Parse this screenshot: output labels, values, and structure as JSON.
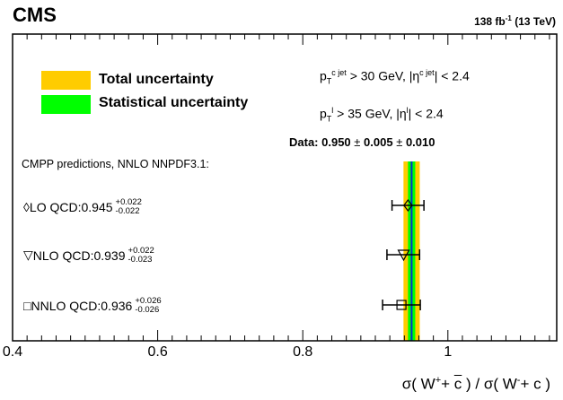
{
  "header": {
    "experiment": "CMS",
    "lumi_main": "138 fb",
    "lumi_exp": "-1",
    "lumi_energy": " (13 TeV)"
  },
  "legend": {
    "total": {
      "label": "Total uncertainty",
      "color": "#ffcc00"
    },
    "stat": {
      "label": "Statistical uncertainty",
      "color": "#00ff00"
    }
  },
  "cuts": {
    "jet": {
      "p": "p",
      "p_sub": "T",
      "p_sup": "c jet",
      "text": " > 30 GeV, |η",
      "eta_sup": "c jet",
      "end": "| < 2.4"
    },
    "lepton": {
      "p": "p",
      "p_sub": "T",
      "p_sup": "l",
      "text": " > 35 GeV, |η",
      "eta_sup": "l",
      "end": "| < 2.4"
    }
  },
  "measurement": {
    "prefix": "Data: ",
    "value_text": "0.950",
    "pm": " ± ",
    "stat_text": "0.005",
    "syst_text": "0.010"
  },
  "predictions_header": "CMPP predictions, NNLO NNPDF3.1:",
  "predictions": [
    {
      "marker": "diamond",
      "symbol": "◊",
      "name": " LO QCD: ",
      "value_text": "0.945",
      "up": "+0.022",
      "down": "-0.022"
    },
    {
      "marker": "triangle",
      "symbol": "▽",
      "name": " NLO QCD: ",
      "value_text": "0.939",
      "up": "+0.022",
      "down": "-0.023"
    },
    {
      "marker": "square",
      "symbol": "□",
      "name": " NNLO QCD: ",
      "value_text": "0.936",
      "up": "+0.026",
      "down": "-0.026"
    }
  ],
  "xlabel": {
    "a": "σ( W",
    "a_sup": "+",
    "b": "+ ",
    "cbar": "c",
    "c": " ) / σ( W",
    "c_sup": "-",
    "d": "+ c )"
  },
  "chart_data": {
    "type": "scatter",
    "xlim": [
      0.4,
      1.15
    ],
    "xticks": [
      0.4,
      0.6,
      0.8,
      1.0
    ],
    "xtick_labels": [
      "0.4",
      "0.6",
      "0.8",
      "1"
    ],
    "measurement": {
      "value": 0.95,
      "stat": 0.005,
      "syst": 0.01,
      "total": 0.0112
    },
    "points": [
      {
        "name": "LO QCD",
        "value": 0.945,
        "err_up": 0.022,
        "err_down": 0.022
      },
      {
        "name": "NLO QCD",
        "value": 0.939,
        "err_up": 0.022,
        "err_down": 0.023
      },
      {
        "name": "NNLO QCD",
        "value": 0.936,
        "err_up": 0.026,
        "err_down": 0.026
      }
    ]
  }
}
